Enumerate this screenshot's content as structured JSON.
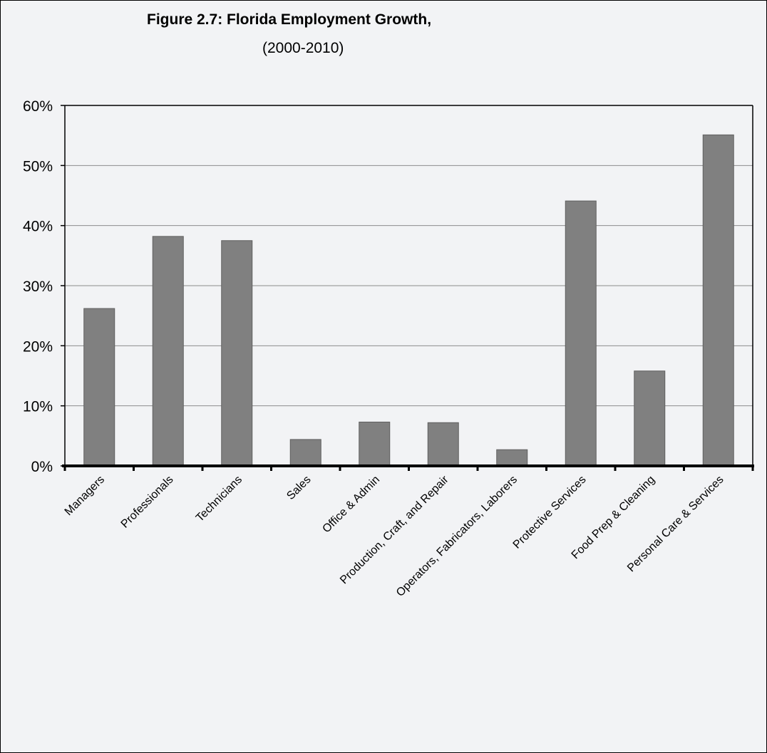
{
  "chart_data": {
    "type": "bar",
    "title": "Figure 2.7: Florida Employment Growth,",
    "subtitle": "(2000-2010)",
    "xlabel": "",
    "ylabel": "",
    "categories": [
      "Managers",
      "Professionals",
      "Technicians",
      "Sales",
      "Office & Admin",
      "Production, Craft, and Repair",
      "Operators, Fabricators, Laborers",
      "Protective Services",
      "Food Prep & Cleaning",
      "Personal Care & Services"
    ],
    "values": [
      26.2,
      38.2,
      37.5,
      4.4,
      7.3,
      7.2,
      2.7,
      44.1,
      15.8,
      55.1
    ],
    "ylim": [
      0,
      60
    ],
    "yticks": [
      "0%",
      "10%",
      "20%",
      "30%",
      "40%",
      "50%",
      "60%"
    ],
    "grid": true,
    "legend": "none",
    "colors": {
      "bar": "#808080",
      "bar_edge": "#5f5f5f",
      "grid": "#8c8c8c",
      "axis": "#000000",
      "background": "#f2f3f5"
    }
  }
}
